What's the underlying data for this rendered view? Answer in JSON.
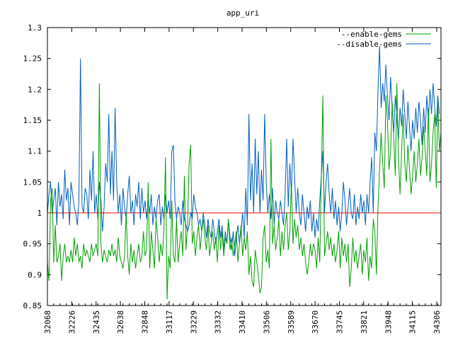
{
  "chart_data": {
    "type": "line",
    "title": "app_uri",
    "xlabel": "",
    "ylabel": "",
    "ylim": [
      0.85,
      1.3
    ],
    "yticks": [
      0.85,
      0.9,
      0.95,
      1,
      1.05,
      1.1,
      1.15,
      1.2,
      1.25,
      1.3
    ],
    "ytick_labels": [
      "0.85",
      "0.9",
      "0.95",
      "1",
      "1.05",
      "1.1",
      "1.15",
      "1.2",
      "1.25",
      "1.3"
    ],
    "xtick_labels": [
      "32068",
      "32226",
      "32435",
      "32638",
      "32848",
      "33117",
      "33229",
      "33332",
      "33410",
      "33506",
      "33589",
      "33670",
      "33745",
      "33821",
      "33948",
      "34115",
      "34306"
    ],
    "grid": false,
    "legend_position": "top-right",
    "reference_line": {
      "y": 1.0,
      "color": "#ff0000"
    },
    "series": [
      {
        "name": "--enable-gems",
        "color": "#00a000",
        "values": [
          0.92,
          0.89,
          1.02,
          1.04,
          0.92,
          0.98,
          0.92,
          0.93,
          0.95,
          0.89,
          0.93,
          0.95,
          0.92,
          0.93,
          0.92,
          0.94,
          0.92,
          0.96,
          0.93,
          0.95,
          0.92,
          0.93,
          0.91,
          0.95,
          0.93,
          0.94,
          0.93,
          0.92,
          0.95,
          0.93,
          0.94,
          0.95,
          0.93,
          1.21,
          0.95,
          0.92,
          0.94,
          0.93,
          0.92,
          0.94,
          0.93,
          0.95,
          0.93,
          0.94,
          0.92,
          0.96,
          0.93,
          0.92,
          0.91,
          0.93,
          1.0,
          0.93,
          0.9,
          0.95,
          0.92,
          0.94,
          0.91,
          0.93,
          0.95,
          0.92,
          0.93,
          0.97,
          0.93,
          0.94,
          1.05,
          0.91,
          0.97,
          0.94,
          0.91,
          0.99,
          0.96,
          0.92,
          0.95,
          0.93,
          0.97,
          1.09,
          0.86,
          0.93,
          0.91,
          1.02,
          0.93,
          0.92,
          0.99,
          0.92,
          0.95,
          0.97,
          0.93,
          1.06,
          0.94,
          0.98,
          1.08,
          1.11,
          0.95,
          0.97,
          0.93,
          0.96,
          0.98,
          0.94,
          0.97,
          0.99,
          0.96,
          0.94,
          0.98,
          0.93,
          0.95,
          0.97,
          0.94,
          0.96,
          0.92,
          0.98,
          0.94,
          0.97,
          0.93,
          0.96,
          0.95,
          0.99,
          0.94,
          0.96,
          0.93,
          0.95,
          0.97,
          0.92,
          0.95,
          0.98,
          0.93,
          0.96,
          0.94,
          0.97,
          0.9,
          0.93,
          0.89,
          0.88,
          0.94,
          0.92,
          0.9,
          0.87,
          0.88,
          0.96,
          0.98,
          0.92,
          0.94,
          0.91,
          1.12,
          0.95,
          0.98,
          0.94,
          0.96,
          0.99,
          0.93,
          0.97,
          0.94,
          0.98,
          1.0,
          0.94,
          0.97,
          1.05,
          0.95,
          0.99,
          0.96,
          0.98,
          0.94,
          0.96,
          0.93,
          0.95,
          0.92,
          0.9,
          0.92,
          0.95,
          0.93,
          0.95,
          0.94,
          0.91,
          0.96,
          0.92,
          1.06,
          1.19,
          0.93,
          0.95,
          0.97,
          0.94,
          0.96,
          0.93,
          0.95,
          0.92,
          0.94,
          0.97,
          0.91,
          0.96,
          0.93,
          0.95,
          0.92,
          0.95,
          0.88,
          0.91,
          0.96,
          0.92,
          0.94,
          0.91,
          0.93,
          0.95,
          0.9,
          0.94,
          0.92,
          0.96,
          0.89,
          0.93,
          0.91,
          0.99,
          0.97,
          0.9,
          1.01,
          1.07,
          1.13,
          1.08,
          1.04,
          1.19,
          1.15,
          1.07,
          1.1,
          1.18,
          1.12,
          1.06,
          1.21,
          1.09,
          1.03,
          1.1,
          1.16,
          1.08,
          1.05,
          1.11,
          1.07,
          1.03,
          1.06,
          1.1,
          1.05,
          1.08,
          1.12,
          1.06,
          1.09,
          1.14,
          1.1,
          1.06,
          1.17,
          1.05,
          1.08,
          1.13,
          1.16,
          1.04,
          1.18,
          1.1,
          1.13
        ]
      },
      {
        "name": "--disable-gems",
        "color": "#0060c0",
        "values": [
          1.0,
          1.03,
          1.05,
          1.0,
          1.02,
          1.04,
          0.98,
          1.05,
          1.01,
          1.03,
          0.99,
          1.07,
          1.02,
          1.04,
          0.98,
          1.05,
          1.03,
          1.01,
          1.0,
          0.98,
          1.02,
          1.25,
          1.01,
          1.0,
          1.04,
          1.03,
          0.99,
          1.07,
          1.02,
          1.1,
          1.0,
          1.03,
          0.99,
          1.05,
          1.02,
          0.97,
          1.01,
          1.08,
          1.05,
          1.16,
          1.03,
          1.1,
          1.02,
          1.17,
          1.05,
          1.0,
          1.03,
          0.98,
          1.04,
          1.01,
          0.99,
          1.03,
          1.06,
          1.0,
          1.02,
          0.98,
          1.03,
          1.01,
          1.05,
          0.99,
          1.04,
          1.0,
          1.02,
          0.99,
          1.02,
          1.0,
          1.03,
          0.98,
          1.01,
          0.99,
          1.02,
          1.03,
          0.98,
          1.01,
          0.99,
          1.03,
          1.0,
          1.02,
          0.99,
          1.1,
          1.11,
          1.02,
          0.99,
          1.01,
          1.0,
          0.98,
          1.02,
          0.99,
          0.98,
          0.97,
          0.98,
          1.0,
          0.99,
          1.03,
          1.01,
          1.0,
          0.98,
          0.99,
          0.97,
          1.0,
          0.98,
          0.96,
          0.99,
          0.97,
          0.96,
          0.99,
          0.97,
          0.95,
          0.97,
          0.99,
          0.96,
          0.98,
          0.94,
          0.97,
          0.95,
          0.99,
          0.96,
          0.94,
          0.97,
          0.93,
          0.96,
          0.98,
          0.95,
          0.97,
          1.0,
          0.96,
          1.04,
          0.98,
          1.16,
          1.02,
          1.08,
          1.0,
          1.12,
          1.03,
          1.1,
          1.0,
          1.07,
          1.02,
          1.16,
          1.05,
          1.0,
          1.03,
          0.99,
          1.04,
          0.98,
          1.02,
          1.0,
          0.99,
          1.02,
          1.0,
          0.98,
          1.03,
          1.12,
          1.01,
          1.08,
          1.03,
          1.12,
          1.06,
          1.0,
          1.04,
          1.0,
          0.98,
          1.03,
          1.0,
          0.97,
          1.01,
          0.99,
          1.02,
          0.97,
          1.0,
          0.96,
          0.99,
          0.97,
          1.02,
          1.06,
          1.1,
          1.0,
          1.05,
          1.08,
          1.03,
          1.0,
          1.04,
          0.99,
          1.02,
          0.98,
          1.01,
          0.97,
          1.0,
          1.05,
          1.02,
          0.98,
          1.01,
          1.04,
          1.0,
          0.99,
          1.03,
          0.98,
          1.01,
          0.99,
          1.03,
          1.0,
          1.02,
          0.98,
          1.03,
          1.0,
          1.05,
          1.09,
          1.0,
          1.13,
          1.1,
          1.2,
          1.27,
          1.17,
          1.21,
          1.18,
          1.24,
          1.19,
          1.15,
          1.22,
          1.17,
          1.13,
          1.19,
          1.15,
          1.12,
          1.17,
          1.14,
          1.2,
          1.16,
          1.12,
          1.18,
          1.14,
          1.1,
          1.15,
          1.12,
          1.17,
          1.13,
          1.18,
          1.15,
          1.11,
          1.17,
          1.13,
          1.19,
          1.15,
          1.2,
          1.16,
          1.21,
          1.17,
          1.14,
          1.19,
          1.16
        ]
      }
    ]
  }
}
